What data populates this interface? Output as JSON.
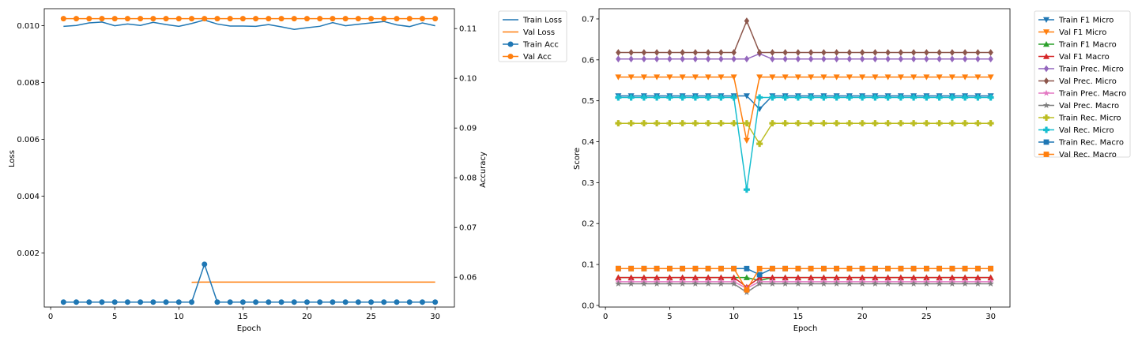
{
  "chart_data": [
    {
      "type": "line",
      "xlabel": "Epoch",
      "ylabel": "Loss",
      "ylabel_right": "Accuracy",
      "xlim": [
        -0.5,
        31.5
      ],
      "ylim": [
        0.0001,
        0.0106
      ],
      "ylim_right": [
        0.054,
        0.114
      ],
      "x_ticks": [
        0,
        5,
        10,
        15,
        20,
        25,
        30
      ],
      "y_ticks": [
        0.002,
        0.004,
        0.006,
        0.008,
        0.01
      ],
      "y_ticks_right": [
        0.06,
        0.07,
        0.08,
        0.09,
        0.1,
        0.11
      ],
      "legend_position": "outside-top-right",
      "x": [
        1,
        2,
        3,
        4,
        5,
        6,
        7,
        8,
        9,
        10,
        11,
        12,
        13,
        14,
        15,
        16,
        17,
        18,
        19,
        20,
        21,
        22,
        23,
        24,
        25,
        26,
        27,
        28,
        29,
        30
      ],
      "series": [
        {
          "name": "Train Loss",
          "axis": "left",
          "color": "#1f77b4",
          "marker": "none",
          "values": [
            0.00998,
            0.01001,
            0.0101,
            0.01013,
            0.01,
            0.01006,
            0.01001,
            0.01012,
            0.01004,
            0.00998,
            0.01008,
            0.0102,
            0.01006,
            0.00999,
            0.00999,
            0.00998,
            0.01004,
            0.00996,
            0.00987,
            0.00993,
            0.00998,
            0.01011,
            0.01,
            0.01005,
            0.0101,
            0.01015,
            0.01003,
            0.00997,
            0.0101,
            0.01
          ]
        },
        {
          "name": "Val Loss",
          "axis": "left",
          "color": "#ff7f0e",
          "marker": "none",
          "values": [
            null,
            null,
            null,
            null,
            null,
            null,
            null,
            null,
            null,
            null,
            0.00097,
            0.00098,
            0.00098,
            0.00098,
            0.00098,
            0.00098,
            0.00098,
            0.00098,
            0.00098,
            0.00098,
            0.00098,
            0.00098,
            0.00098,
            0.00098,
            0.00098,
            0.00098,
            0.00098,
            0.00098,
            0.00098,
            0.00098
          ]
        },
        {
          "name": "Train Acc",
          "axis": "right",
          "color": "#1f77b4",
          "marker": "circle",
          "values": [
            0.055,
            0.055,
            0.055,
            0.055,
            0.055,
            0.055,
            0.055,
            0.055,
            0.055,
            0.055,
            0.055,
            0.0626,
            0.055,
            0.055,
            0.055,
            0.055,
            0.055,
            0.055,
            0.055,
            0.055,
            0.055,
            0.055,
            0.055,
            0.055,
            0.055,
            0.055,
            0.055,
            0.055,
            0.055,
            0.055
          ]
        },
        {
          "name": "Val Acc",
          "axis": "right",
          "color": "#ff7f0e",
          "marker": "circle",
          "values": [
            0.112,
            0.112,
            0.112,
            0.112,
            0.112,
            0.112,
            0.112,
            0.112,
            0.112,
            0.112,
            0.112,
            0.112,
            0.112,
            0.112,
            0.112,
            0.112,
            0.112,
            0.112,
            0.112,
            0.112,
            0.112,
            0.112,
            0.112,
            0.112,
            0.112,
            0.112,
            0.112,
            0.112,
            0.112,
            0.112
          ]
        }
      ]
    },
    {
      "type": "line",
      "xlabel": "Epoch",
      "ylabel": "Score",
      "xlim": [
        -0.5,
        31.5
      ],
      "ylim": [
        -0.004,
        0.725
      ],
      "x_ticks": [
        0,
        5,
        10,
        15,
        20,
        25,
        30
      ],
      "y_ticks": [
        0.0,
        0.1,
        0.2,
        0.3,
        0.4,
        0.5,
        0.6,
        0.7
      ],
      "legend_position": "outside-top-right",
      "x": [
        1,
        2,
        3,
        4,
        5,
        6,
        7,
        8,
        9,
        10,
        11,
        12,
        13,
        14,
        15,
        16,
        17,
        18,
        19,
        20,
        21,
        22,
        23,
        24,
        25,
        26,
        27,
        28,
        29,
        30
      ],
      "series": [
        {
          "name": "Train F1 Micro",
          "color": "#1f77b4",
          "marker": "triangle-down",
          "base": 0.512,
          "overrides": {
            "11": 0.512,
            "12": 0.48
          }
        },
        {
          "name": "Val F1 Micro",
          "color": "#ff7f0e",
          "marker": "triangle-down",
          "base": 0.558,
          "overrides": {
            "11": 0.403
          }
        },
        {
          "name": "Train F1 Macro",
          "color": "#2ca02c",
          "marker": "triangle-up",
          "base": 0.068,
          "overrides": {
            "11": 0.068,
            "12": 0.061
          }
        },
        {
          "name": "Val F1 Macro",
          "color": "#d62728",
          "marker": "triangle-up",
          "base": 0.068,
          "overrides": {
            "11": 0.045
          }
        },
        {
          "name": "Train Prec. Micro",
          "color": "#9467bd",
          "marker": "diamond",
          "base": 0.602,
          "overrides": {
            "12": 0.615
          }
        },
        {
          "name": "Val Prec. Micro",
          "color": "#8c564b",
          "marker": "diamond",
          "base": 0.618,
          "overrides": {
            "11": 0.695
          }
        },
        {
          "name": "Train Prec. Macro",
          "color": "#e377c2",
          "marker": "star",
          "base": 0.058,
          "overrides": {
            "11": 0.042,
            "12": 0.058
          }
        },
        {
          "name": "Val Prec. Macro",
          "color": "#7f7f7f",
          "marker": "star",
          "base": 0.053,
          "overrides": {
            "11": 0.032
          }
        },
        {
          "name": "Train Rec. Micro",
          "color": "#bcbd22",
          "marker": "plus",
          "base": 0.445,
          "overrides": {
            "12": 0.395
          }
        },
        {
          "name": "Val Rec. Micro",
          "color": "#17becf",
          "marker": "plus",
          "base": 0.508,
          "overrides": {
            "11": 0.283
          }
        },
        {
          "name": "Train Rec. Macro",
          "color": "#1f77b4",
          "marker": "square",
          "base": 0.09,
          "overrides": {
            "11": 0.09,
            "12": 0.075
          }
        },
        {
          "name": "Val Rec. Macro",
          "color": "#ff7f0e",
          "marker": "square",
          "base": 0.09,
          "overrides": {
            "11": 0.038
          }
        }
      ]
    }
  ]
}
